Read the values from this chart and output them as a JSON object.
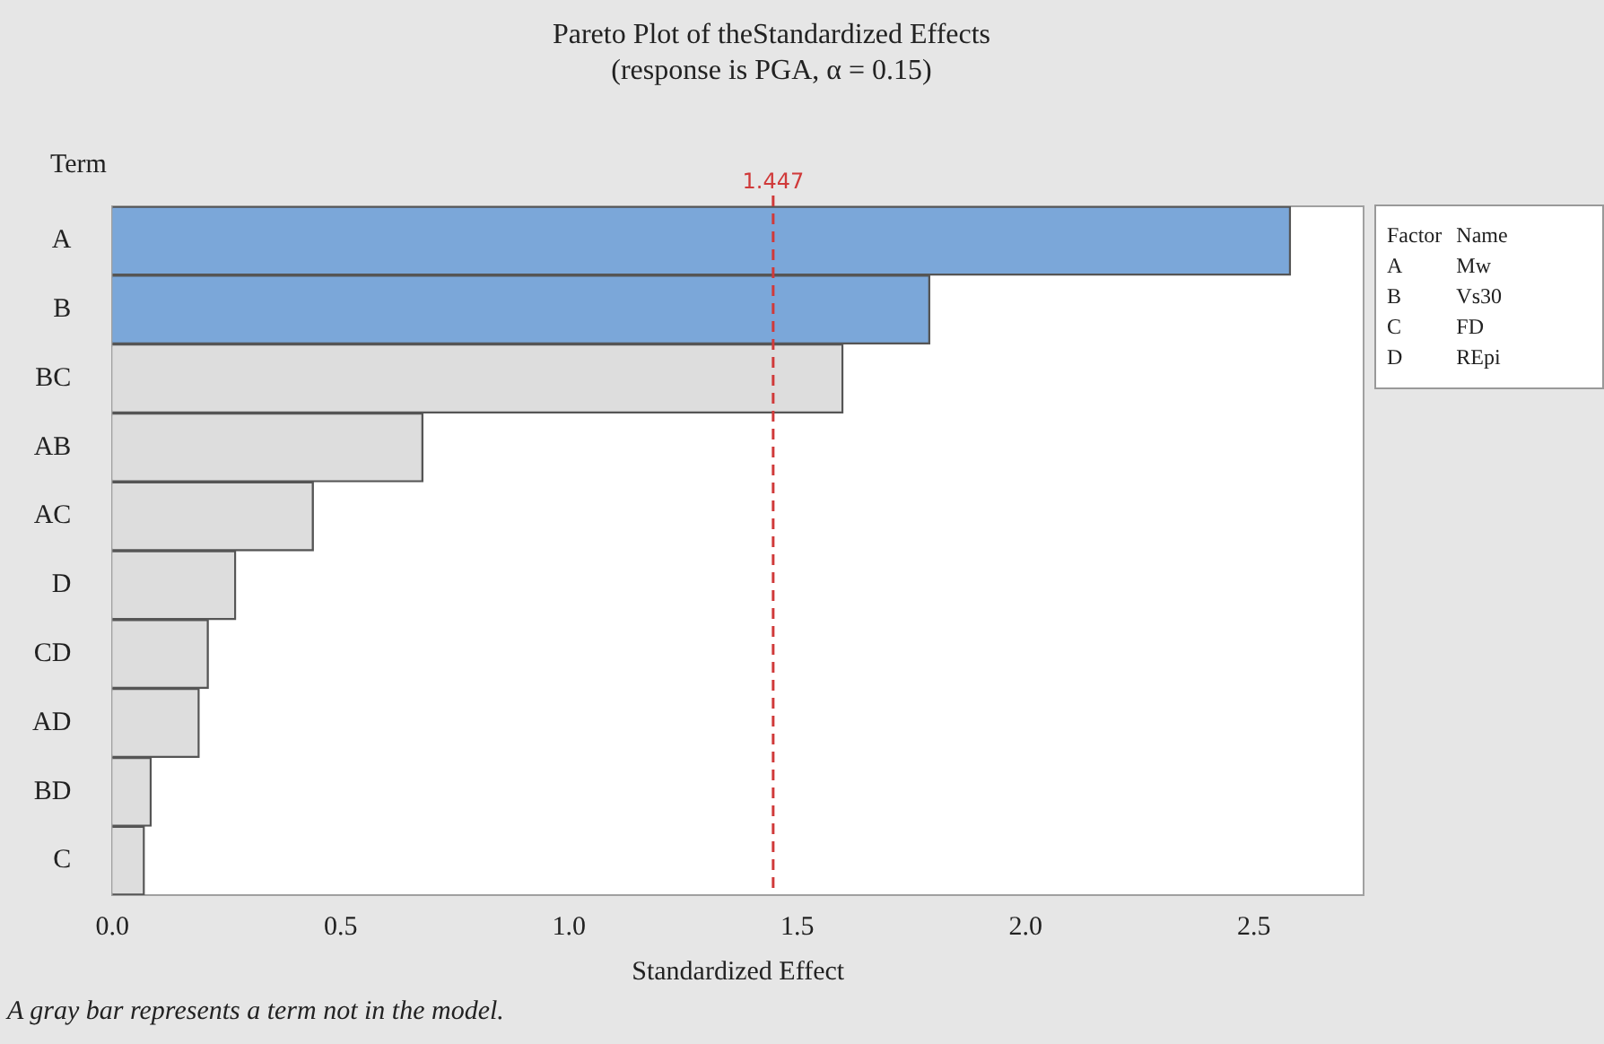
{
  "chart_data": {
    "type": "bar",
    "orientation": "horizontal",
    "title": "Pareto Plot of theStandardized Effects",
    "subtitle": "(response is PGA, α = 0.15)",
    "xlabel": "Standardized Effect",
    "ylabel": "Term",
    "categories": [
      "A",
      "B",
      "BC",
      "AB",
      "AC",
      "D",
      "CD",
      "AD",
      "BD",
      "C"
    ],
    "values": [
      2.58,
      1.79,
      1.6,
      0.68,
      0.44,
      0.27,
      0.21,
      0.19,
      0.085,
      0.07
    ],
    "colors": [
      "#7ba7d9",
      "#7ba7d9",
      "#dddddd",
      "#dddddd",
      "#dddddd",
      "#dddddd",
      "#dddddd",
      "#dddddd",
      "#dddddd",
      "#dddddd"
    ],
    "xlim": [
      0,
      2.74
    ],
    "xticks": [
      {
        "value": 0,
        "label": "0.0"
      },
      {
        "value": 0.5,
        "label": "0.5"
      },
      {
        "value": 1,
        "label": "1.0"
      },
      {
        "value": 1.5,
        "label": "1.5"
      },
      {
        "value": 2,
        "label": "2.0"
      },
      {
        "value": 2.5,
        "label": "2.5"
      }
    ],
    "ref_lines": [
      {
        "axis": "x",
        "value": 1.447,
        "label": "1.447",
        "color": "#d03a3a",
        "line_style": "dashed"
      }
    ],
    "grid": false,
    "legend": false,
    "annotations": [
      "Factor",
      "Name",
      "A",
      "Mw",
      "B",
      "Vs30",
      "C",
      "FD",
      "D",
      "REpi",
      "A gray bar represents a term not in the model."
    ]
  }
}
